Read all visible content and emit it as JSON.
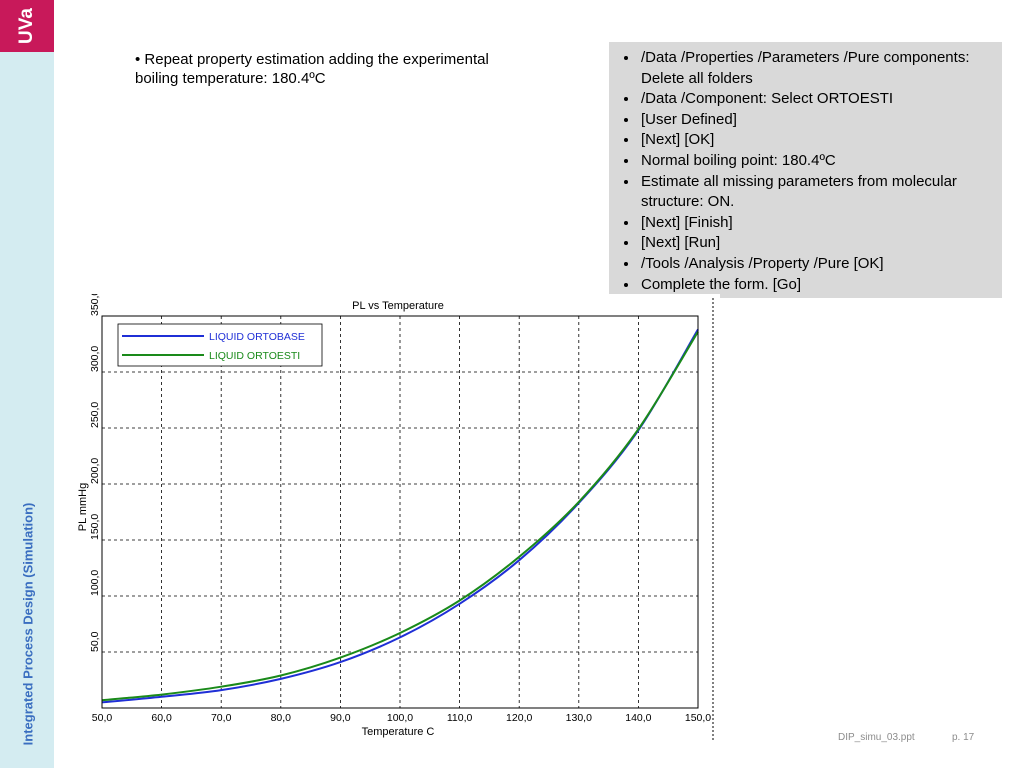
{
  "sidebar": {
    "logo": "UVa",
    "course_title": "Integrated Process Design (Simulation)",
    "colors": {
      "background": "#d4ecf1",
      "logo": "#c8195a",
      "title": "#3a6ec0"
    }
  },
  "intro": {
    "text": "• Repeat property estimation adding the experimental boiling temperature: 180.4ºC"
  },
  "steps": {
    "items": [
      "/Data /Properties /Parameters /Pure components: Delete all folders",
      "/Data /Component: Select ORTOESTI",
      " [User Defined]",
      " [Next]   [OK]",
      "Normal boiling point: 180.4ºC",
      "Estimate all missing parameters from molecular structure: ON.",
      "[Next]   [Finish]",
      "[Next]   [Run]",
      "/Tools /Analysis /Property /Pure    [OK]",
      "Complete the form.     [Go]"
    ]
  },
  "chart_data": {
    "type": "line",
    "title": "PL vs Temperature",
    "xlabel": "Temperature  C",
    "ylabel": "PL  mmHg",
    "xlim": [
      50,
      150
    ],
    "ylim": [
      0,
      350
    ],
    "x_ticks": [
      "50,0",
      "60,0",
      "70,0",
      "80,0",
      "90,0",
      "100,0",
      "110,0",
      "120,0",
      "130,0",
      "140,0",
      "150,0"
    ],
    "y_ticks": [
      "50,0",
      "100,0",
      "150,0",
      "200,0",
      "250,0",
      "300,0",
      "350,0"
    ],
    "grid": true,
    "legend_position": "top-left",
    "x": [
      50,
      60,
      70,
      80,
      90,
      100,
      110,
      120,
      130,
      140,
      150
    ],
    "series": [
      {
        "name": "LIQUID ORTOBASE",
        "color": "#1f2fd6",
        "values": [
          5,
          10,
          16,
          26,
          41,
          63,
          93,
          132,
          183,
          248,
          338
        ]
      },
      {
        "name": "LIQUID ORTOESTI",
        "color": "#1a8a1a",
        "values": [
          7,
          12,
          19,
          29,
          45,
          67,
          96,
          135,
          184,
          249,
          336
        ]
      }
    ]
  },
  "footer": {
    "file": "DIP_simu_03.ppt",
    "page": "p. 17"
  }
}
